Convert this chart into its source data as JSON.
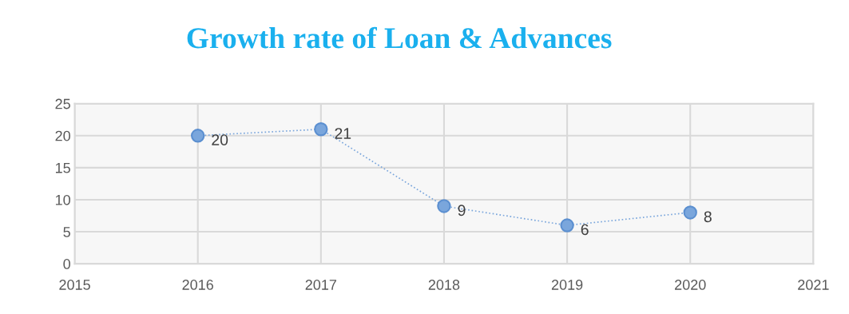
{
  "chart_data": {
    "type": "line",
    "title": "Growth rate of Loan & Advances",
    "x": [
      2016,
      2017,
      2018,
      2019,
      2020
    ],
    "series": [
      {
        "color": "#7aa6dc",
        "values": [
          20,
          21,
          9,
          6,
          8
        ]
      }
    ],
    "xlim": [
      2015,
      2021
    ],
    "xticks": [
      2015,
      2016,
      2017,
      2018,
      2019,
      2020,
      2021
    ],
    "ylim": [
      0,
      25
    ],
    "yticks": [
      0,
      5,
      10,
      15,
      20,
      25
    ],
    "grid": true,
    "marker": "circle",
    "line_style": "dotted",
    "data_labels": true
  }
}
